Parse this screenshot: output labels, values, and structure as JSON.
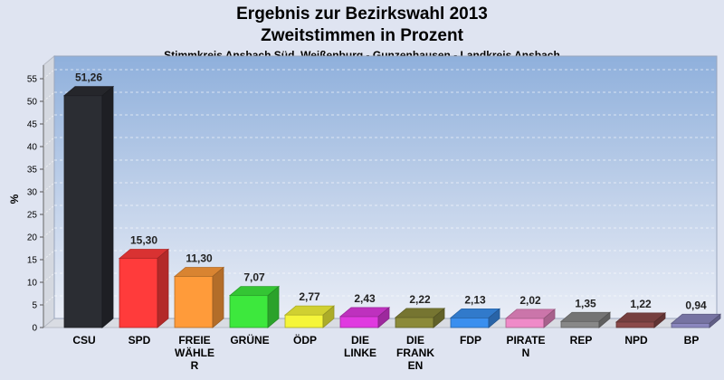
{
  "chart_data": {
    "type": "bar",
    "title": "Ergebnis zur Bezirkswahl 2013",
    "subtitle": "Zweitstimmen in Prozent",
    "caption": "Stimmkreis Ansbach Süd, Weißenburg - Gunzenhausen - Landkreis Ansbach",
    "ylabel": "%",
    "xlabel": "",
    "ylim": [
      0,
      58
    ],
    "yticks": [
      0,
      5,
      10,
      15,
      20,
      25,
      30,
      35,
      40,
      45,
      50,
      55
    ],
    "grid": true,
    "categories": [
      [
        "CSU"
      ],
      [
        "SPD"
      ],
      [
        "FREIE",
        "WÄHLE",
        "R"
      ],
      [
        "GRÜNE"
      ],
      [
        "ÖDP"
      ],
      [
        "DIE",
        "LINKE"
      ],
      [
        "DIE",
        "FRANK",
        "EN"
      ],
      [
        "FDP"
      ],
      [
        "PIRATE",
        "N"
      ],
      [
        "REP"
      ],
      [
        "NPD"
      ],
      [
        "BP"
      ]
    ],
    "values": [
      51.26,
      15.3,
      11.3,
      7.07,
      2.77,
      2.43,
      2.22,
      2.13,
      2.02,
      1.35,
      1.22,
      0.94
    ],
    "value_labels": [
      "51,26",
      "15,30",
      "11,30",
      "7,07",
      "2,77",
      "2,43",
      "2,22",
      "2,13",
      "2,02",
      "1,35",
      "1,22",
      "0,94"
    ],
    "colors": [
      "#2b2d33",
      "#ff3b3b",
      "#ff9b3a",
      "#3de83d",
      "#f5f53a",
      "#e03ae0",
      "#8b8a3a",
      "#3a8fef",
      "#ef8ac8",
      "#888888",
      "#8b4a4a",
      "#8b87bf"
    ]
  }
}
